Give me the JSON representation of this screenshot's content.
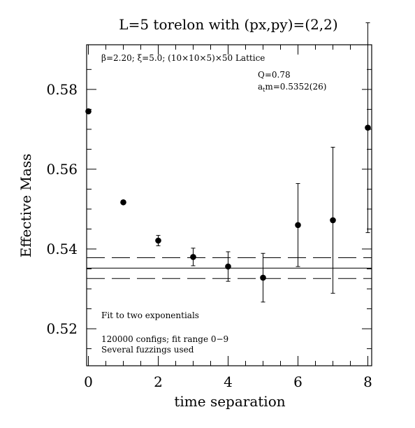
{
  "chart_data": {
    "type": "scatter",
    "title": "L=5 torelon with (px,py)=(2,2)",
    "xlabel": "time separation",
    "ylabel": "Effective Mass",
    "xlim": [
      0,
      8.1
    ],
    "ylim": [
      0.509,
      0.589
    ],
    "x_ticks": [
      0,
      2,
      4,
      6,
      8
    ],
    "x_tick_labels": [
      "0",
      "2",
      "4",
      "6",
      "8"
    ],
    "y_ticks": [
      0.52,
      0.54,
      0.56,
      0.58
    ],
    "y_tick_labels": [
      "0.52",
      "0.54",
      "0.56",
      "0.58"
    ],
    "grid": false,
    "points": [
      {
        "x": 0,
        "y": 0.5745,
        "err": 0.0005
      },
      {
        "x": 1,
        "y": 0.5517,
        "err": 0.0005
      },
      {
        "x": 2,
        "y": 0.5421,
        "err": 0.0013
      },
      {
        "x": 3,
        "y": 0.538,
        "err": 0.0022
      },
      {
        "x": 4,
        "y": 0.5356,
        "err": 0.0037
      },
      {
        "x": 5,
        "y": 0.5328,
        "err": 0.0061
      },
      {
        "x": 6,
        "y": 0.546,
        "err": 0.0104
      },
      {
        "x": 7,
        "y": 0.5472,
        "err": 0.0183
      },
      {
        "x": 8,
        "y": 0.5704,
        "err": 0.0263
      }
    ],
    "fit": {
      "value": 0.5352,
      "error": 0.0026
    },
    "annotations": {
      "lattice": "β=2.20; ξ=5.0; (10×10×5)×50 Lattice",
      "q": "Q=0.78",
      "mass_prefix": "a",
      "mass_sub": "t",
      "mass_rest": "m=0.5352(26)",
      "fit_type": "Fit to two exponentials",
      "configs": "120000 configs; fit range 0−9",
      "fuzzing": "Several fuzzings used"
    }
  }
}
